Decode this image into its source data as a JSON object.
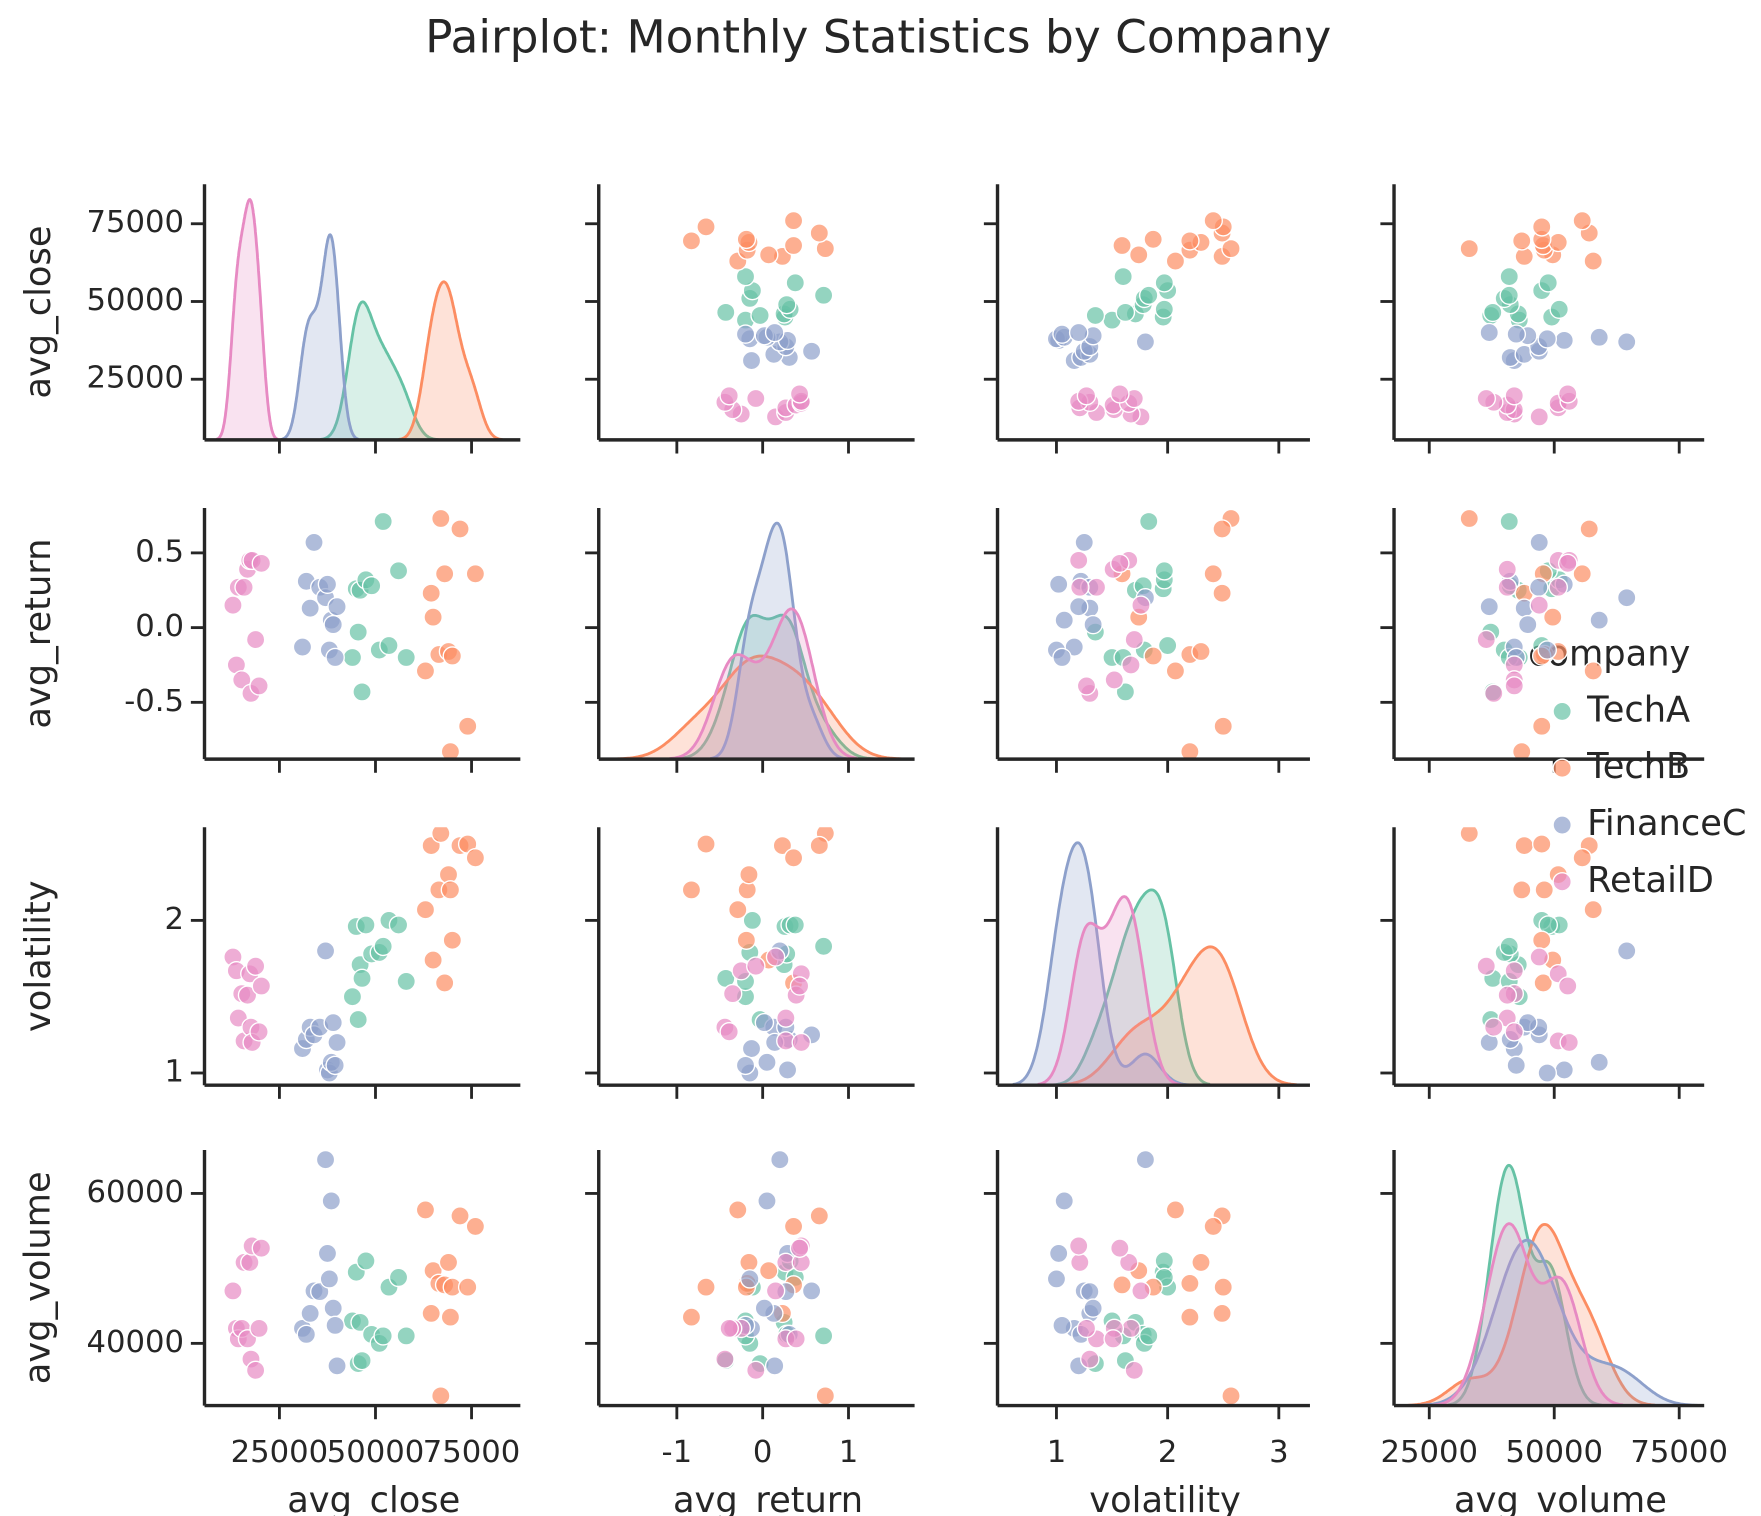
{
  "chart_data": {
    "type": "pairplot",
    "title": "Pairplot: Monthly Statistics by Company",
    "legend_title": "company",
    "variables": [
      {
        "name": "avg_close",
        "lim": [
          5500,
          87700
        ],
        "ticks": [
          25000,
          50000,
          75000
        ]
      },
      {
        "name": "avg_return",
        "lim": [
          -0.88,
          0.8
        ],
        "xlim": [
          -1.91,
          1.77
        ],
        "ticks": [
          -0.5,
          {
            "value": 0,
            "label": "0.0"
          },
          0.5
        ],
        "xticks": [
          -1,
          0,
          1
        ]
      },
      {
        "name": "volatility",
        "lim": [
          0.92,
          2.61
        ],
        "xlim": [
          0.47,
          3.28
        ],
        "ticks": [
          1,
          2
        ],
        "xticks": [
          1,
          2,
          3
        ]
      },
      {
        "name": "avg_volume",
        "lim": [
          31700,
          65800
        ],
        "xlim": [
          17950,
          80000
        ],
        "ticks": [
          40000,
          60000
        ],
        "xticks": [
          25000,
          50000,
          75000
        ]
      }
    ],
    "series": [
      {
        "name": "TechA",
        "color": "#66c2a5",
        "data": [
          [
            44000,
            -0.2,
            1.5,
            43000
          ],
          [
            45000,
            0.26,
            1.96,
            49500
          ],
          [
            45500,
            -0.03,
            1.35,
            37300
          ],
          [
            46000,
            0.25,
            1.71,
            42800
          ],
          [
            46500,
            -0.43,
            1.62,
            37700
          ],
          [
            47500,
            0.32,
            1.97,
            51000
          ],
          [
            49000,
            0.28,
            1.78,
            41200
          ],
          [
            51000,
            -0.15,
            1.79,
            40000
          ],
          [
            52000,
            0.71,
            1.83,
            41000
          ],
          [
            53500,
            -0.12,
            2.0,
            47500
          ],
          [
            56000,
            0.38,
            1.97,
            48800
          ],
          [
            58000,
            -0.2,
            1.6,
            41000
          ]
        ]
      },
      {
        "name": "TechB",
        "color": "#fc8d62",
        "data": [
          [
            63000,
            -0.29,
            2.07,
            57800
          ],
          [
            64500,
            0.23,
            2.49,
            44000
          ],
          [
            65000,
            0.07,
            1.74,
            49700
          ],
          [
            66500,
            -0.18,
            2.2,
            48000
          ],
          [
            67000,
            0.73,
            2.57,
            33000
          ],
          [
            68000,
            0.36,
            1.59,
            47800
          ],
          [
            69000,
            -0.16,
            2.3,
            50800
          ],
          [
            69500,
            -0.83,
            2.2,
            43500
          ],
          [
            70000,
            -0.19,
            1.87,
            47500
          ],
          [
            72000,
            0.66,
            2.49,
            57000
          ],
          [
            74000,
            -0.66,
            2.5,
            47500
          ],
          [
            76000,
            0.36,
            2.41,
            55600
          ]
        ]
      },
      {
        "name": "FinanceC",
        "color": "#8da0cb",
        "data": [
          [
            31000,
            -0.13,
            1.16,
            42000
          ],
          [
            32000,
            0.31,
            1.22,
            41200
          ],
          [
            33000,
            0.13,
            1.3,
            44000
          ],
          [
            34000,
            0.57,
            1.25,
            47000
          ],
          [
            35500,
            0.27,
            1.3,
            46900
          ],
          [
            37000,
            0.2,
            1.8,
            64500
          ],
          [
            37500,
            0.29,
            1.02,
            52000
          ],
          [
            38000,
            -0.15,
            1.0,
            48600
          ],
          [
            38500,
            0.05,
            1.07,
            59000
          ],
          [
            39000,
            0.02,
            1.33,
            44700
          ],
          [
            39500,
            -0.2,
            1.05,
            42400
          ],
          [
            40000,
            0.14,
            1.2,
            37000
          ]
        ]
      },
      {
        "name": "RetailD",
        "color": "#e78ac3",
        "data": [
          [
            12900,
            0.15,
            1.76,
            47000
          ],
          [
            13800,
            -0.25,
            1.67,
            42000
          ],
          [
            14300,
            0.27,
            1.36,
            40600
          ],
          [
            15200,
            -0.35,
            1.52,
            42000
          ],
          [
            15800,
            0.27,
            1.21,
            50800
          ],
          [
            16700,
            0.39,
            1.51,
            40600
          ],
          [
            17300,
            0.45,
            1.65,
            50800
          ],
          [
            17600,
            -0.44,
            1.3,
            37900
          ],
          [
            17900,
            0.45,
            1.2,
            53000
          ],
          [
            18800,
            -0.08,
            1.7,
            36400
          ],
          [
            19700,
            -0.39,
            1.27,
            42000
          ],
          [
            20300,
            0.43,
            1.57,
            52700
          ]
        ]
      }
    ]
  }
}
